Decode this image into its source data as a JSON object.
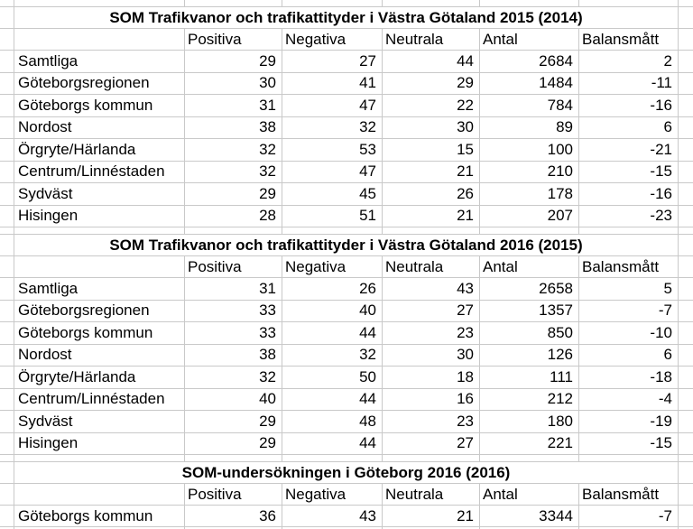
{
  "colors": {
    "gridline": "#c9c9c9",
    "text": "#000000",
    "background": "#ffffff"
  },
  "columns": [
    "Positiva",
    "Negativa",
    "Neutrala",
    "Antal",
    "Balansmått"
  ],
  "tables": [
    {
      "title": "SOM Trafikvanor och trafikattityder i Västra Götaland 2015 (2014)",
      "rows": [
        {
          "label": "Samtliga",
          "values": [
            29,
            27,
            44,
            2684,
            2
          ]
        },
        {
          "label": "Göteborgsregionen",
          "values": [
            30,
            41,
            29,
            1484,
            -11
          ]
        },
        {
          "label": "Göteborgs kommun",
          "values": [
            31,
            47,
            22,
            784,
            -16
          ]
        },
        {
          "label": "Nordost",
          "values": [
            38,
            32,
            30,
            89,
            6
          ]
        },
        {
          "label": "Örgryte/Härlanda",
          "values": [
            32,
            53,
            15,
            100,
            -21
          ]
        },
        {
          "label": "Centrum/Linnéstaden",
          "values": [
            32,
            47,
            21,
            210,
            -15
          ]
        },
        {
          "label": "Sydväst",
          "values": [
            29,
            45,
            26,
            178,
            -16
          ]
        },
        {
          "label": "Hisingen",
          "values": [
            28,
            51,
            21,
            207,
            -23
          ]
        }
      ]
    },
    {
      "title": "SOM Trafikvanor och trafikattityder i Västra Götaland 2016 (2015)",
      "rows": [
        {
          "label": "Samtliga",
          "values": [
            31,
            26,
            43,
            2658,
            5
          ]
        },
        {
          "label": "Göteborgsregionen",
          "values": [
            33,
            40,
            27,
            1357,
            -7
          ]
        },
        {
          "label": "Göteborgs kommun",
          "values": [
            33,
            44,
            23,
            850,
            -10
          ]
        },
        {
          "label": "Nordost",
          "values": [
            38,
            32,
            30,
            126,
            6
          ]
        },
        {
          "label": "Örgryte/Härlanda",
          "values": [
            32,
            50,
            18,
            111,
            -18
          ]
        },
        {
          "label": "Centrum/Linnéstaden",
          "values": [
            40,
            44,
            16,
            212,
            -4
          ]
        },
        {
          "label": "Sydväst",
          "values": [
            29,
            48,
            23,
            180,
            -19
          ]
        },
        {
          "label": "Hisingen",
          "values": [
            29,
            44,
            27,
            221,
            -15
          ]
        }
      ]
    },
    {
      "title": "SOM-undersökningen i Göteborg 2016 (2016)",
      "rows": [
        {
          "label": "Göteborgs kommun",
          "values": [
            36,
            43,
            21,
            3344,
            -7
          ]
        }
      ]
    }
  ]
}
